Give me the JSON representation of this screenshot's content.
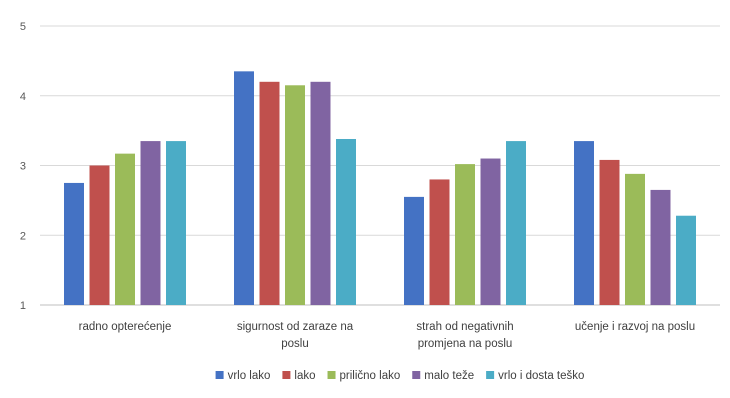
{
  "chart_data": {
    "type": "bar",
    "categories": [
      [
        "radno opterećenje"
      ],
      [
        "sigurnost od zaraze na",
        "poslu"
      ],
      [
        "strah od negativnih",
        "promjena na poslu"
      ],
      [
        "učenje i razvoj na poslu"
      ]
    ],
    "series": [
      {
        "name": "vrlo lako",
        "color": "#4472C4",
        "values": [
          2.75,
          4.35,
          2.55,
          3.35
        ]
      },
      {
        "name": "lako",
        "color": "#C0504D",
        "values": [
          3.0,
          4.2,
          2.8,
          3.08
        ]
      },
      {
        "name": "prilično lako",
        "color": "#9BBB59",
        "values": [
          3.17,
          4.15,
          3.02,
          2.88
        ]
      },
      {
        "name": "malo teže",
        "color": "#8064A2",
        "values": [
          3.35,
          4.2,
          3.1,
          2.65
        ]
      },
      {
        "name": "vrlo i dosta teško",
        "color": "#4BACC6",
        "values": [
          3.35,
          3.38,
          3.35,
          2.28
        ]
      }
    ],
    "ylim": [
      1,
      5
    ],
    "yticks": [
      1,
      2,
      3,
      4,
      5
    ],
    "grid": true,
    "legend": "bottom",
    "title": "",
    "xlabel": "",
    "ylabel": ""
  }
}
